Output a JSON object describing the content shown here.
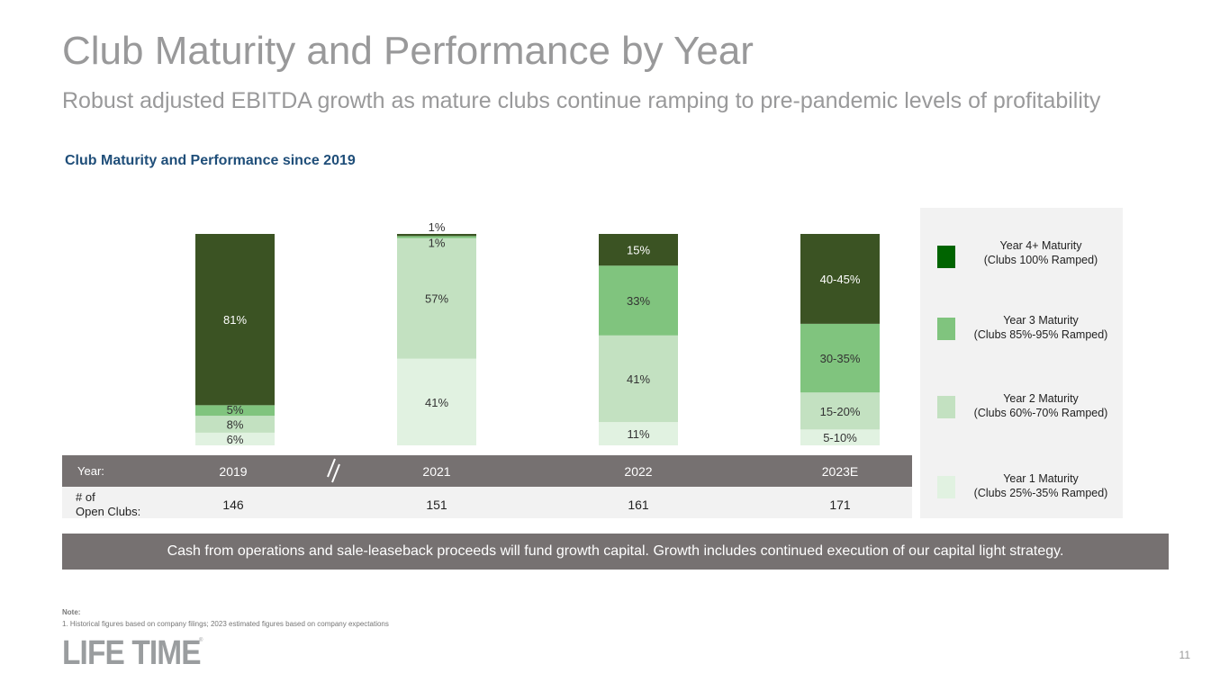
{
  "slide": {
    "title": "Club Maturity and Performance by Year",
    "subtitle": "Robust adjusted EBITDA growth as mature clubs continue ramping to pre-pandemic levels of profitability",
    "section_title": "Club Maturity and Performance since 2019",
    "callout": "Cash from operations and sale-leaseback proceeds will fund growth capital. Growth includes continued execution of our capital light strategy.",
    "note_heading": "Note:",
    "note_text": "1. Historical figures based on company filings; 2023 estimated figures based on company expectations",
    "logo_text": "LIFE TIME",
    "logo_mark": "®",
    "page_number": "11"
  },
  "table": {
    "year_label": "Year:",
    "clubs_label_line1": "# of",
    "clubs_label_line2": "Open Clubs:",
    "years": [
      "2019",
      "2021",
      "2022",
      "2023E"
    ],
    "open_clubs": [
      "146",
      "151",
      "161",
      "171"
    ]
  },
  "legend": [
    {
      "line1": "Year 4+ Maturity",
      "line2": "(Clubs 100% Ramped)",
      "color": "#006400"
    },
    {
      "line1": "Year 3 Maturity",
      "line2": "(Clubs 85%-95% Ramped)",
      "color": "#80c47e"
    },
    {
      "line1": "Year 2 Maturity",
      "line2": "(Clubs 60%-70% Ramped)",
      "color": "#c3e1c1"
    },
    {
      "line1": "Year 1 Maturity",
      "line2": "(Clubs 25%-35% Ramped)",
      "color": "#e1f2e1"
    }
  ],
  "chart_data": {
    "type": "bar",
    "stacked": true,
    "title": "Club Maturity and Performance since 2019",
    "categories": [
      "2019",
      "2021",
      "2022",
      "2023E"
    ],
    "ylim": [
      0,
      100
    ],
    "xlabel": "",
    "ylabel": "",
    "grid": false,
    "series": [
      {
        "name": "Year 1 Maturity (Clubs 25%-35% Ramped)",
        "color": "#e1f2e1",
        "values": [
          6,
          41,
          11,
          7.5
        ],
        "labels": [
          "6%",
          "41%",
          "11%",
          "5-10%"
        ]
      },
      {
        "name": "Year 2 Maturity (Clubs 60%-70% Ramped)",
        "color": "#c3e1c1",
        "values": [
          8,
          57,
          41,
          17.5
        ],
        "labels": [
          "8%",
          "57%",
          "41%",
          "15-20%"
        ]
      },
      {
        "name": "Year 3 Maturity (Clubs 85%-95% Ramped)",
        "color": "#80c47e",
        "values": [
          5,
          1,
          33,
          32.5
        ],
        "labels": [
          "5%",
          "1%",
          "33%",
          "30-35%"
        ]
      },
      {
        "name": "Year 4+ Maturity (Clubs 100% Ramped)",
        "color": "#3b5323",
        "values": [
          81,
          1,
          15,
          42.5
        ],
        "labels": [
          "81%",
          "1%",
          "15%",
          "40-45%"
        ]
      }
    ]
  }
}
